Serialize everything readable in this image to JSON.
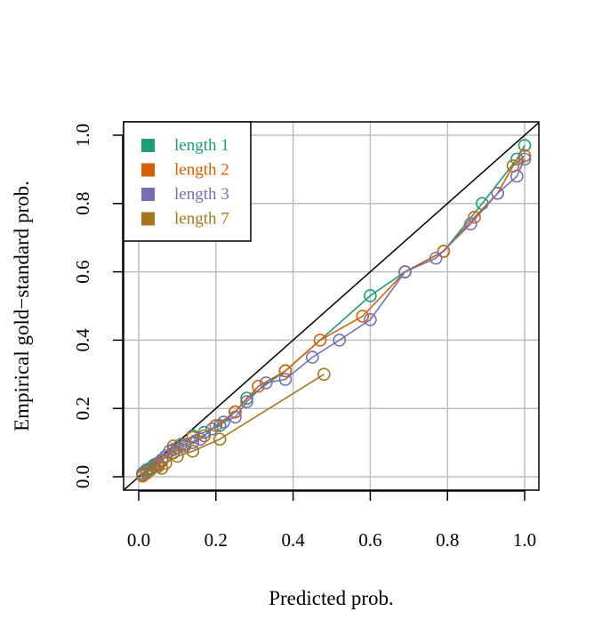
{
  "chart_data": {
    "type": "line",
    "xlabel": "Predicted prob.",
    "ylabel": "Empirical gold−standard prob.",
    "xlim": [
      0,
      1
    ],
    "ylim": [
      0,
      1
    ],
    "xticks": [
      "0.0",
      "0.2",
      "0.4",
      "0.6",
      "0.8",
      "1.0"
    ],
    "yticks": [
      "0.0",
      "0.2",
      "0.4",
      "0.6",
      "0.8",
      "1.0"
    ],
    "grid": true,
    "reference_line": "y = x",
    "legend_position": "top-left",
    "series": [
      {
        "name": "length 1",
        "color": "#1b9e77",
        "points": [
          [
            0.01,
            0.01
          ],
          [
            0.02,
            0.02
          ],
          [
            0.03,
            0.025
          ],
          [
            0.04,
            0.035
          ],
          [
            0.05,
            0.04
          ],
          [
            0.07,
            0.06
          ],
          [
            0.09,
            0.08
          ],
          [
            0.11,
            0.095
          ],
          [
            0.14,
            0.12
          ],
          [
            0.17,
            0.13
          ],
          [
            0.21,
            0.15
          ],
          [
            0.25,
            0.19
          ],
          [
            0.28,
            0.23
          ],
          [
            0.38,
            0.31
          ],
          [
            0.6,
            0.53
          ],
          [
            0.69,
            0.6
          ],
          [
            0.79,
            0.66
          ],
          [
            0.89,
            0.8
          ],
          [
            0.98,
            0.93
          ],
          [
            1.0,
            0.97
          ]
        ]
      },
      {
        "name": "length 2",
        "color": "#d95f02",
        "points": [
          [
            0.01,
            0.005
          ],
          [
            0.02,
            0.015
          ],
          [
            0.03,
            0.02
          ],
          [
            0.04,
            0.03
          ],
          [
            0.05,
            0.035
          ],
          [
            0.06,
            0.045
          ],
          [
            0.07,
            0.06
          ],
          [
            0.09,
            0.07
          ],
          [
            0.09,
            0.09
          ],
          [
            0.12,
            0.095
          ],
          [
            0.14,
            0.115
          ],
          [
            0.17,
            0.12
          ],
          [
            0.2,
            0.15
          ],
          [
            0.25,
            0.19
          ],
          [
            0.31,
            0.265
          ],
          [
            0.38,
            0.31
          ],
          [
            0.47,
            0.4
          ],
          [
            0.58,
            0.47
          ],
          [
            0.69,
            0.6
          ],
          [
            0.79,
            0.66
          ],
          [
            0.87,
            0.76
          ],
          [
            0.93,
            0.83
          ],
          [
            0.97,
            0.91
          ],
          [
            1.0,
            0.94
          ]
        ]
      },
      {
        "name": "length 3",
        "color": "#7570b3",
        "points": [
          [
            0.01,
            0.01
          ],
          [
            0.02,
            0.015
          ],
          [
            0.03,
            0.02
          ],
          [
            0.04,
            0.03
          ],
          [
            0.05,
            0.04
          ],
          [
            0.06,
            0.05
          ],
          [
            0.07,
            0.06
          ],
          [
            0.08,
            0.075
          ],
          [
            0.1,
            0.085
          ],
          [
            0.12,
            0.09
          ],
          [
            0.14,
            0.1
          ],
          [
            0.16,
            0.11
          ],
          [
            0.19,
            0.14
          ],
          [
            0.22,
            0.16
          ],
          [
            0.25,
            0.175
          ],
          [
            0.28,
            0.22
          ],
          [
            0.33,
            0.275
          ],
          [
            0.38,
            0.285
          ],
          [
            0.45,
            0.35
          ],
          [
            0.52,
            0.4
          ],
          [
            0.6,
            0.46
          ],
          [
            0.69,
            0.6
          ],
          [
            0.77,
            0.64
          ],
          [
            0.86,
            0.74
          ],
          [
            0.93,
            0.83
          ],
          [
            0.98,
            0.88
          ],
          [
            1.0,
            0.93
          ]
        ]
      },
      {
        "name": "length 7",
        "color": "#a6761d",
        "points": [
          [
            0.01,
            0.002
          ],
          [
            0.02,
            0.01
          ],
          [
            0.03,
            0.02
          ],
          [
            0.05,
            0.03
          ],
          [
            0.06,
            0.025
          ],
          [
            0.07,
            0.04
          ],
          [
            0.1,
            0.06
          ],
          [
            0.14,
            0.075
          ],
          [
            0.21,
            0.11
          ],
          [
            0.48,
            0.3
          ]
        ]
      }
    ]
  }
}
